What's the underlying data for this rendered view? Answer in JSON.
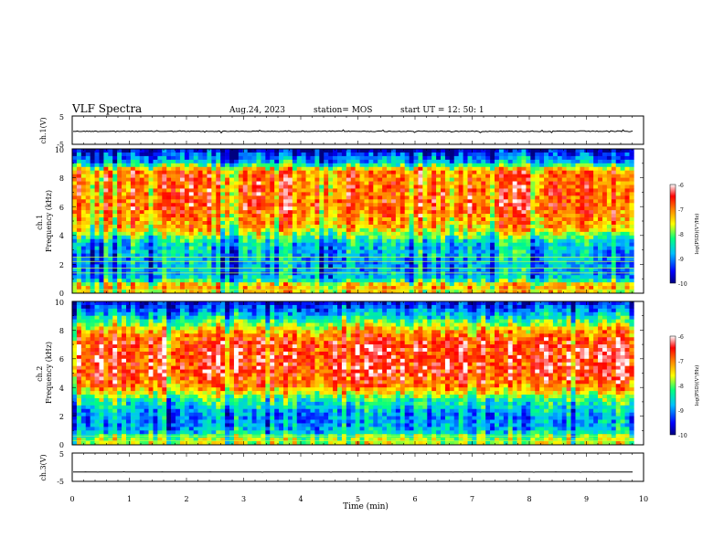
{
  "header": {
    "title": "VLF Spectra",
    "date": "Aug.24, 2023",
    "station": "station= MOS",
    "start": "start  UT =   12: 50: 1"
  },
  "chart_data": [
    {
      "type": "line",
      "panel": "ch1-waveform",
      "ylabel": "ch.1(V)",
      "yticks": [
        "5",
        "-5"
      ],
      "ylim": [
        -5,
        5
      ],
      "trace_level": -0.4,
      "trace_noise": 0.15,
      "color": "#000000"
    },
    {
      "type": "heatmap",
      "panel": "ch1-spectrogram",
      "ylabel": "ch.1\nFrequency (kHz)",
      "yticks": [
        "0",
        "2",
        "4",
        "6",
        "8",
        "10"
      ],
      "ylim": [
        0,
        10
      ],
      "colorbar": {
        "label": "log(PSD)(V²/Hz)",
        "ticks": [
          "-6",
          "-7",
          "-8",
          "-9",
          "-10"
        ],
        "range": [
          -10,
          -6
        ],
        "colors": [
          "#000080",
          "#0000ff",
          "#00c0ff",
          "#00ff80",
          "#ffff00",
          "#ff8000",
          "#ff0000",
          "#ffffff"
        ]
      },
      "band_profile_khz": [
        [
          0,
          -7.5
        ],
        [
          0.5,
          -7.0
        ],
        [
          1.0,
          -8.6
        ],
        [
          2.0,
          -8.8
        ],
        [
          3.5,
          -8.5
        ],
        [
          4.5,
          -7.2
        ],
        [
          6.0,
          -6.7
        ],
        [
          8.5,
          -6.9
        ],
        [
          9.0,
          -8.5
        ],
        [
          9.7,
          -9.3
        ],
        [
          10,
          -9.8
        ]
      ],
      "lines_khz": [
        0.25,
        1.4,
        1.75,
        2.2,
        2.5
      ],
      "lines_color": "#c0ff40"
    },
    {
      "type": "heatmap",
      "panel": "ch2-spectrogram",
      "ylabel": "ch.2\nFrequency (kHz)",
      "yticks": [
        "0",
        "2",
        "4",
        "6",
        "8",
        "10"
      ],
      "ylim": [
        0,
        10
      ],
      "colorbar": {
        "label": "log(PSD)(V²/Hz)",
        "ticks": [
          "-6",
          "-7",
          "-8",
          "-9",
          "-10"
        ],
        "range": [
          -10,
          -6
        ],
        "colors": [
          "#000080",
          "#0000ff",
          "#00c0ff",
          "#00ff80",
          "#ffff00",
          "#ff8000",
          "#ff0000",
          "#ffffff"
        ]
      },
      "band_profile_khz": [
        [
          0,
          -7.6
        ],
        [
          0.5,
          -7.8
        ],
        [
          1.0,
          -8.7
        ],
        [
          2.0,
          -8.9
        ],
        [
          3.0,
          -8.3
        ],
        [
          4.0,
          -7.0
        ],
        [
          5.0,
          -6.5
        ],
        [
          7.0,
          -6.5
        ],
        [
          8.0,
          -7.2
        ],
        [
          9.0,
          -8.6
        ],
        [
          10,
          -9.6
        ]
      ],
      "lines_khz": [
        0.3,
        0.6
      ],
      "lines_color": "#c0ff40"
    },
    {
      "type": "line",
      "panel": "ch3-waveform",
      "ylabel": "ch.3(V)",
      "yticks": [
        "5",
        "-5"
      ],
      "ylim": [
        -5,
        5
      ],
      "trace_level": -1.7,
      "trace_noise": 0.02,
      "color": "#000000"
    }
  ],
  "x_axis": {
    "label": "Time (min)",
    "ticks": [
      "0",
      "1",
      "2",
      "3",
      "4",
      "5",
      "6",
      "7",
      "8",
      "9",
      "10"
    ],
    "xlim": [
      0,
      10
    ],
    "data_end": 9.83
  }
}
